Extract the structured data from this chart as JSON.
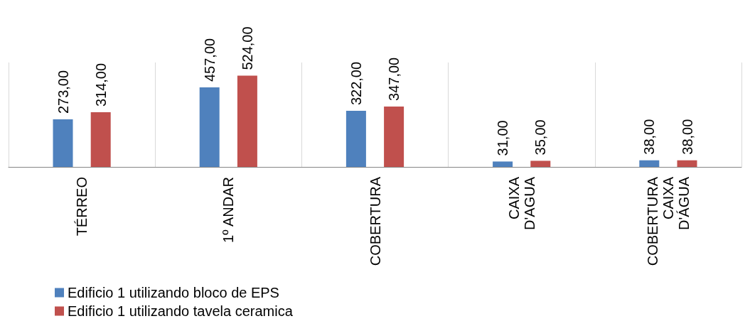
{
  "chart_data": {
    "type": "bar",
    "categories": [
      "TÉRREO",
      "1º ANDAR",
      "COBERTURA",
      "CAIXA\nD'AGUA",
      "COBERTURA\nCAIXA\nD'ÁGUA"
    ],
    "series": [
      {
        "name": "Edificio 1 utilizando bloco de EPS",
        "color": "#4f81bd",
        "values": [
          273,
          457,
          322,
          31,
          38
        ],
        "value_labels": [
          "273,00",
          "457,00",
          "322,00",
          "31,00",
          "38,00"
        ]
      },
      {
        "name": "Edificio 1 utilizando tavela ceramica",
        "color": "#c0504d",
        "values": [
          314,
          524,
          347,
          35,
          38
        ],
        "value_labels": [
          "314,00",
          "524,00",
          "347,00",
          "35,00",
          "38,00"
        ]
      }
    ],
    "grid": "x",
    "legend": "bottom left"
  }
}
